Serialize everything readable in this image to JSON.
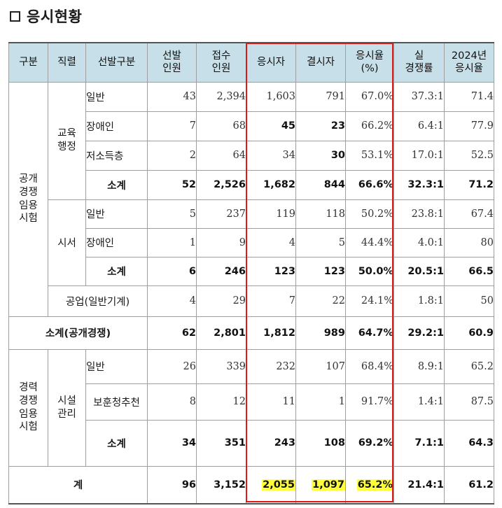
{
  "title": "응시현황",
  "headers": {
    "category": "구분",
    "position": "직렬",
    "selection_type": "선발구분",
    "selected": [
      "선발",
      "인원"
    ],
    "applied": [
      "접수",
      "인원"
    ],
    "examinees": "응시자",
    "absentees": "결시자",
    "rate": [
      "응시율",
      "(%)"
    ],
    "competition": [
      "실",
      "경쟁률"
    ],
    "rate_2024": [
      "2024년",
      "응시율"
    ]
  },
  "groups": {
    "open": "공개경쟁임용시험",
    "career": "경력경쟁임용시험"
  },
  "positions": {
    "edu_admin": "교육행정",
    "librarian": "시서",
    "facility": "시설관리"
  },
  "rows": {
    "edu_general": {
      "label": "일반",
      "selected": "43",
      "applied": "2,394",
      "examinees": "1,603",
      "absentees": "791",
      "rate": "67.0%",
      "competition": "37.3:1",
      "rate_2024": "71.4"
    },
    "edu_disabled": {
      "label": "장애인",
      "selected": "7",
      "applied": "68",
      "examinees": "45",
      "absentees": "23",
      "rate": "66.2%",
      "competition": "6.4:1",
      "rate_2024": "77.9"
    },
    "edu_low_income": {
      "label": "저소득층",
      "selected": "2",
      "applied": "64",
      "examinees": "34",
      "absentees": "30",
      "rate": "53.1%",
      "competition": "17.0:1",
      "rate_2024": "52.5"
    },
    "edu_subtotal": {
      "label": "소계",
      "selected": "52",
      "applied": "2,526",
      "examinees": "1,682",
      "absentees": "844",
      "rate": "66.6%",
      "competition": "32.3:1",
      "rate_2024": "71.2"
    },
    "lib_general": {
      "label": "일반",
      "selected": "5",
      "applied": "237",
      "examinees": "119",
      "absentees": "118",
      "rate": "50.2%",
      "competition": "23.8:1",
      "rate_2024": "67.4"
    },
    "lib_disabled": {
      "label": "장애인",
      "selected": "1",
      "applied": "9",
      "examinees": "4",
      "absentees": "5",
      "rate": "44.4%",
      "competition": "4.0:1",
      "rate_2024": "80"
    },
    "lib_subtotal": {
      "label": "소계",
      "selected": "6",
      "applied": "246",
      "examinees": "123",
      "absentees": "123",
      "rate": "50.0%",
      "competition": "20.5:1",
      "rate_2024": "66.5"
    },
    "industrial": {
      "label": "공업(일반기계)",
      "selected": "4",
      "applied": "29",
      "examinees": "7",
      "absentees": "22",
      "rate": "24.1%",
      "competition": "1.8:1",
      "rate_2024": "50"
    },
    "open_subtotal": {
      "label": "소계(공개경쟁)",
      "selected": "62",
      "applied": "2,801",
      "examinees": "1,812",
      "absentees": "989",
      "rate": "64.7%",
      "competition": "29.2:1",
      "rate_2024": "60.9"
    },
    "fac_general": {
      "label": "일반",
      "selected": "26",
      "applied": "339",
      "examinees": "232",
      "absentees": "107",
      "rate": "68.4%",
      "competition": "8.9:1",
      "rate_2024": "65.2"
    },
    "fac_veterans": {
      "label": "보훈청추천",
      "selected": "8",
      "applied": "12",
      "examinees": "11",
      "absentees": "1",
      "rate": "91.7%",
      "competition": "1.4:1",
      "rate_2024": "87.5"
    },
    "fac_subtotal": {
      "label": "소계",
      "selected": "34",
      "applied": "351",
      "examinees": "243",
      "absentees": "108",
      "rate": "69.2%",
      "competition": "7.1:1",
      "rate_2024": "64.3"
    },
    "total": {
      "label": "계",
      "selected": "96",
      "applied": "3,152",
      "examinees": "2,055",
      "absentees": "1,097",
      "rate": "65.2%",
      "competition": "21.4:1",
      "rate_2024": "61.2"
    }
  },
  "colors": {
    "header_bg": "#c7dfe8",
    "highlight_box": "#e01818",
    "highlight_fill": "#ffff3a"
  }
}
